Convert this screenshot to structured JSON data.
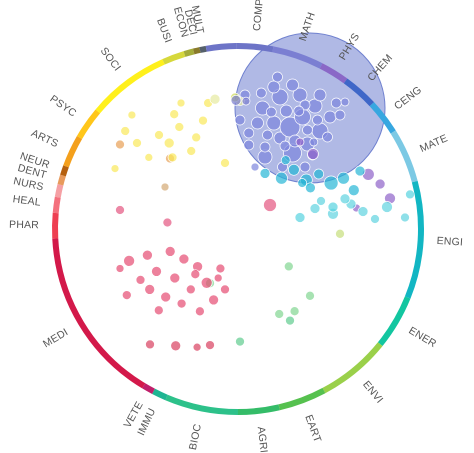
{
  "chart_data": {
    "type": "scatter",
    "subtype": "circular subject-area bubble chart",
    "title": "",
    "xlabel": "",
    "ylabel": "",
    "grid": false,
    "legend": "none",
    "background": "#ffffff",
    "label_color": "#555555",
    "subject_areas": [
      {
        "label": "COMP",
        "start": -0.5,
        "end": 11.0,
        "color": "#6d74c7"
      },
      {
        "label": "MATH",
        "start": 11.0,
        "end": 27.0,
        "color": "#7b7fd2"
      },
      {
        "label": "PHYS",
        "start": 27.0,
        "end": 36.0,
        "color": "#8a68c7"
      },
      {
        "label": "CHEM",
        "start": 36.0,
        "end": 47.0,
        "color": "#3f67c8"
      },
      {
        "label": "CENG",
        "start": 47.0,
        "end": 58.0,
        "color": "#37a7e0"
      },
      {
        "label": "MATE",
        "start": 58.0,
        "end": 75.0,
        "color": "#7cc9e4"
      },
      {
        "label": "ENGI",
        "start": 75.0,
        "end": 112.0,
        "color": "#12b6c3"
      },
      {
        "label": "ENER",
        "start": 112.0,
        "end": 129.0,
        "color": "#13c6a0"
      },
      {
        "label": "ENVI",
        "start": 129.0,
        "end": 152.0,
        "color": "#9ad04a"
      },
      {
        "label": "EART",
        "start": 152.0,
        "end": 167.0,
        "color": "#56c14f"
      },
      {
        "label": "AGRI",
        "start": 167.0,
        "end": 180.0,
        "color": "#34bc68"
      },
      {
        "label": "BIOC",
        "start": 180.0,
        "end": 203.0,
        "color": "#2dc18a"
      },
      {
        "label": "IMMU",
        "start": 203.0,
        "end": 207.5,
        "color": "#1fb592"
      },
      {
        "label": "VETE",
        "start": 207.5,
        "end": 211.0,
        "color": "#c01f6a"
      },
      {
        "label": "MEDI",
        "start": 211.0,
        "end": 267.0,
        "color": "#d3194a"
      },
      {
        "label": "PHAR",
        "start": 267.0,
        "end": 275.0,
        "color": "#ee3f52"
      },
      {
        "label": "HEAL",
        "start": 275.0,
        "end": 280.0,
        "color": "#f4707d"
      },
      {
        "label": "NURS",
        "start": 280.0,
        "end": 284.0,
        "color": "#f5a0a4"
      },
      {
        "label": "DENT",
        "start": 284.0,
        "end": 287.0,
        "color": "#e89a5c"
      },
      {
        "label": "NEUR",
        "start": 287.0,
        "end": 290.0,
        "color": "#b5600f"
      },
      {
        "label": "ARTS",
        "start": 290.0,
        "end": 300.0,
        "color": "#f4a01c"
      },
      {
        "label": "PSYC",
        "start": 300.0,
        "end": 310.0,
        "color": "#ffc61a"
      },
      {
        "label": "SOCI",
        "start": 310.0,
        "end": 336.0,
        "color": "#fff01c"
      },
      {
        "label": "BUSI",
        "start": 336.0,
        "end": 343.0,
        "color": "#d6d83c"
      },
      {
        "label": "ECON",
        "start": 343.0,
        "end": 346.0,
        "color": "#a4ac3a"
      },
      {
        "label": "DECI",
        "start": 346.0,
        "end": 348.0,
        "color": "#8a7a2a"
      },
      {
        "label": "MULT",
        "start": 348.0,
        "end": 350.0,
        "color": "#55606b"
      },
      {
        "label": "COMP",
        "start": 350.0,
        "end": 359.5,
        "color": "#6d74c7"
      }
    ],
    "highlight": {
      "x": 0.52,
      "y": 0.55,
      "r": 0.53,
      "color": "#6f80cf"
    },
    "series": [
      {
        "color": "#7e86dd",
        "points": [
          [
            0.15,
            0.7,
            0.05
          ],
          [
            0.28,
            0.82,
            0.07
          ],
          [
            0.4,
            0.63,
            0.06
          ],
          [
            0.5,
            0.78,
            0.09
          ],
          [
            0.62,
            0.69,
            0.07
          ],
          [
            0.72,
            0.56,
            0.08
          ],
          [
            0.35,
            0.48,
            0.07
          ],
          [
            0.48,
            0.52,
            0.1
          ],
          [
            0.58,
            0.42,
            0.08
          ],
          [
            0.68,
            0.31,
            0.07
          ],
          [
            0.8,
            0.42,
            0.06
          ],
          [
            0.26,
            0.33,
            0.07
          ],
          [
            0.4,
            0.22,
            0.08
          ],
          [
            0.56,
            0.2,
            0.07
          ],
          [
            0.45,
            0.36,
            0.06
          ],
          [
            0.62,
            0.55,
            0.05
          ],
          [
            0.3,
            0.6,
            0.05
          ],
          [
            0.22,
            0.48,
            0.06
          ],
          [
            0.72,
            0.2,
            0.06
          ],
          [
            0.5,
            0.1,
            0.06
          ],
          [
            0.35,
            0.12,
            0.06
          ],
          [
            0.6,
            0.92,
            0.05
          ],
          [
            0.85,
            0.28,
            0.05
          ],
          [
            0.42,
            0.92,
            0.05
          ],
          [
            0.25,
            0.18,
            0.05
          ],
          [
            0.66,
            0.8,
            0.05
          ],
          [
            0.33,
            0.37,
            0.05
          ],
          [
            0.52,
            0.66,
            0.06
          ],
          [
            0.6,
            0.3,
            0.05
          ],
          [
            0.44,
            0.71,
            0.05
          ],
          [
            0.78,
            0.62,
            0.05
          ],
          [
            0.15,
            0.58,
            0.05
          ],
          [
            0.2,
            0.92,
            0.04
          ],
          [
            0.88,
            0.4,
            0.05
          ],
          [
            0.08,
            0.45,
            0.05
          ],
          [
            0.7,
            0.45,
            0.05
          ],
          [
            0.38,
            0.02,
            0.05
          ],
          [
            0.92,
            0.27,
            0.04
          ],
          [
            0.55,
            0.36,
            0.05
          ],
          [
            0.12,
            0.2,
            0.05
          ],
          [
            0.67,
            0.67,
            0.04
          ],
          [
            0.28,
            0.72,
            0.05
          ]
        ]
      },
      {
        "color": "#8e62c9",
        "points": [
          [
            1.2,
            0.45,
            0.055
          ],
          [
            2.6,
            0.62,
            0.06
          ],
          [
            2.9,
            0.7,
            0.05
          ],
          [
            3.15,
            0.82,
            0.055
          ],
          [
            2.3,
            0.9,
            0.04
          ],
          [
            0.87,
            0.35,
            0.04
          ]
        ]
      },
      {
        "color": "#27b6d6",
        "points": [
          [
            1.5,
            0.72,
            0.06
          ],
          [
            2.1,
            0.75,
            0.06
          ],
          [
            2.7,
            0.8,
            0.07
          ],
          [
            3.0,
            0.72,
            0.06
          ],
          [
            2.4,
            0.65,
            0.05
          ],
          [
            1.8,
            0.58,
            0.055
          ],
          [
            3.4,
            0.6,
            0.05
          ],
          [
            2.2,
            0.88,
            0.05
          ],
          [
            1.1,
            0.64,
            0.05
          ],
          [
            3.25,
            0.92,
            0.055
          ],
          [
            1.6,
            0.42,
            0.045
          ],
          [
            2.0,
            0.8,
            0.045
          ]
        ]
      },
      {
        "color": "#5fd3df",
        "points": [
          [
            3.8,
            0.85,
            0.055
          ],
          [
            4.3,
            0.82,
            0.05
          ],
          [
            4.7,
            0.76,
            0.055
          ],
          [
            4.1,
            0.72,
            0.05
          ],
          [
            3.5,
            0.78,
            0.05
          ],
          [
            4.0,
            0.65,
            0.05
          ],
          [
            4.5,
            0.92,
            0.045
          ],
          [
            5.0,
            0.9,
            0.045
          ],
          [
            3.6,
            0.68,
            0.045
          ]
        ]
      },
      {
        "color": "#57d3df",
        "points": [
          [
            5.6,
            0.75,
            0.05
          ],
          [
            5.75,
            0.6,
            0.05
          ],
          [
            6.1,
            0.42,
            0.045
          ]
        ]
      },
      {
        "color": "#c6de7c",
        "points": [
          [
            6.2,
            0.52,
            0.045
          ]
        ]
      },
      {
        "color": "#82d592",
        "points": [
          [
            7.1,
            0.38,
            0.045
          ],
          [
            8.9,
            0.6,
            0.045
          ],
          [
            9.3,
            0.58,
            0.045
          ],
          [
            9.7,
            0.47,
            0.045
          ],
          [
            9.15,
            0.26,
            0.045
          ]
        ]
      },
      {
        "color": "#5fcc8f",
        "points": [
          [
            9.8,
            0.38,
            0.045
          ],
          [
            10.7,
            0.08,
            0.045
          ]
        ]
      },
      {
        "color": "#e45580",
        "points": [
          [
            18.1,
            0.45,
            0.045
          ],
          [
            17.5,
            0.2,
            0.045
          ],
          [
            19.4,
            0.1,
            0.065
          ]
        ]
      },
      {
        "color": "#e64c72",
        "points": [
          [
            19.0,
            0.22,
            0.055
          ],
          [
            18.6,
            0.3,
            0.04
          ],
          [
            19.8,
            0.16,
            0.05
          ],
          [
            20.8,
            0.12,
            0.05
          ],
          [
            21.4,
            0.2,
            0.05
          ],
          [
            22.0,
            0.28,
            0.05
          ],
          [
            20.2,
            0.33,
            0.05
          ],
          [
            21.0,
            0.4,
            0.05
          ],
          [
            22.4,
            0.45,
            0.055
          ],
          [
            21.7,
            0.52,
            0.045
          ],
          [
            20.6,
            0.6,
            0.05
          ],
          [
            19.9,
            0.52,
            0.05
          ],
          [
            22.7,
            0.63,
            0.05
          ],
          [
            21.3,
            0.67,
            0.045
          ],
          [
            20.3,
            0.74,
            0.045
          ],
          [
            22.1,
            0.75,
            0.045
          ],
          [
            21.9,
            0.36,
            0.045
          ],
          [
            23.0,
            0.3,
            0.045
          ],
          [
            23.2,
            0.52,
            0.045
          ],
          [
            19.5,
            0.42,
            0.045
          ],
          [
            18.9,
            0.58,
            0.045
          ],
          [
            22.9,
            0.4,
            0.04
          ]
        ]
      },
      {
        "color": "#d8405f",
        "points": [
          [
            20.2,
            0.88,
            0.05
          ],
          [
            19.6,
            0.84,
            0.045
          ],
          [
            21.0,
            0.86,
            0.045
          ],
          [
            20.7,
            0.92,
            0.04
          ]
        ]
      },
      {
        "color": "#e8a056",
        "points": [
          [
            31.0,
            0.55,
            0.045
          ],
          [
            28.9,
            0.35,
            0.045
          ]
        ]
      },
      {
        "color": "#d3a874",
        "points": [
          [
            27.1,
            0.7,
            0.04
          ]
        ]
      },
      {
        "color": "#fae85a",
        "points": [
          [
            27.6,
            0.45,
            0.045
          ],
          [
            28.3,
            0.6,
            0.045
          ],
          [
            27.0,
            0.92,
            0.04
          ],
          [
            30.2,
            0.6,
            0.05
          ],
          [
            29.0,
            0.78,
            0.04
          ],
          [
            30.8,
            0.4,
            0.045
          ],
          [
            29.6,
            0.5,
            0.045
          ],
          [
            30.4,
            0.78,
            0.045
          ],
          [
            31.5,
            0.7,
            0.045
          ],
          [
            32.2,
            0.32,
            0.045
          ],
          [
            28.0,
            0.25,
            0.04
          ],
          [
            30.5,
            0.24,
            0.045
          ],
          [
            31.8,
            0.53,
            0.045
          ],
          [
            32.5,
            0.1,
            0.045
          ],
          [
            30.9,
            0.1,
            0.04
          ],
          [
            33.5,
            0.85,
            0.045
          ]
        ]
      },
      {
        "color": "#e6e9a0",
        "points": [
          [
            32.9,
            0.42,
            0.05
          ],
          [
            33.1,
            0.62,
            0.045
          ]
        ]
      },
      {
        "color": "#cfdc5a",
        "points": [
          [
            33.4,
            0.25,
            0.045
          ]
        ]
      },
      {
        "color": "#7a7ecf",
        "points": [
          [
            34.2,
            0.05,
            0.05
          ],
          [
            34.6,
            0.18,
            0.04
          ]
        ]
      }
    ]
  }
}
